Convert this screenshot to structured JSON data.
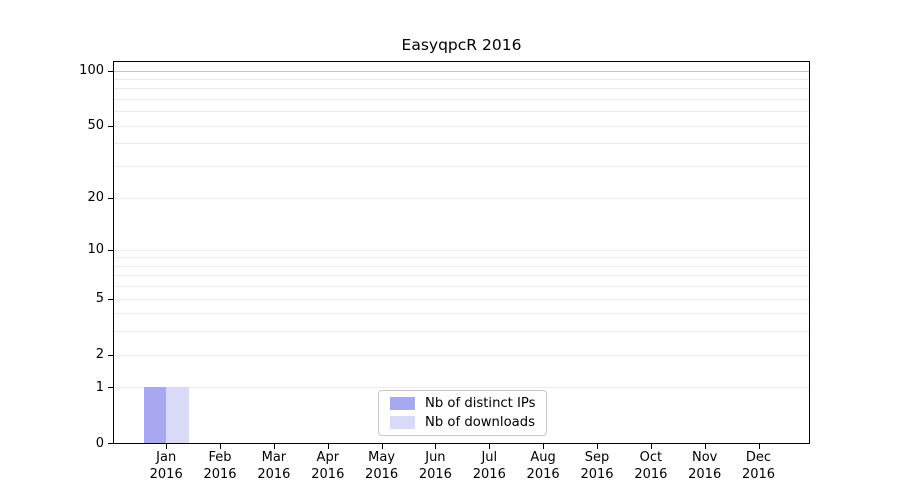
{
  "chart_data": {
    "type": "bar",
    "title": "EasyqpcR 2016",
    "categories": [
      "Jan",
      "Feb",
      "Mar",
      "Apr",
      "May",
      "Jun",
      "Jul",
      "Aug",
      "Sep",
      "Oct",
      "Nov",
      "Dec"
    ],
    "x_year_label": "2016",
    "series": [
      {
        "name": "Nb of distinct IPs",
        "color": "#a8a8f0",
        "values": [
          1,
          0,
          0,
          0,
          0,
          0,
          0,
          0,
          0,
          0,
          0,
          0
        ]
      },
      {
        "name": "Nb of downloads",
        "color": "#d9d9f8",
        "values": [
          1,
          0,
          0,
          0,
          0,
          0,
          0,
          0,
          0,
          0,
          0,
          0
        ]
      }
    ],
    "y_ticks": [
      0,
      1,
      2,
      5,
      10,
      20,
      50,
      100
    ],
    "y_minor_gridlines": [
      3,
      4,
      6,
      7,
      8,
      9,
      30,
      40,
      60,
      70,
      80,
      90
    ],
    "y_scale": "log1p",
    "ylim": [
      0,
      103
    ],
    "grid": "horizontal",
    "legend_position": "lower center",
    "colors": {
      "axis": "#000000",
      "gridline": "#ececec",
      "gridline_top": "#c5c5c5",
      "legend_border": "#c8c8c8",
      "background": "#ffffff"
    }
  }
}
